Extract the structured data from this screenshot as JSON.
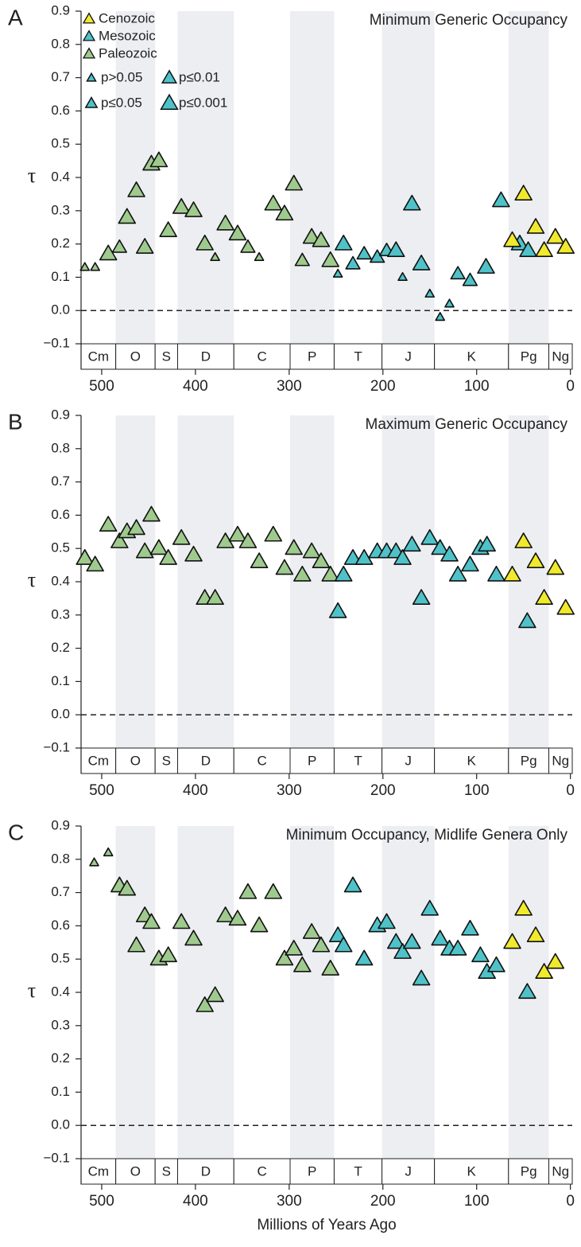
{
  "chart_data": [
    {
      "type": "scatter",
      "panel": "A",
      "title": "Minimum Generic Occupancy",
      "y_label": "τ",
      "xlim": [
        522,
        -2
      ],
      "xticks": [
        500,
        400,
        300,
        200,
        100,
        0
      ],
      "ylim": [
        -0.1,
        0.9
      ],
      "yticks": [
        {
          "value": -0.1,
          "label": "−0.1"
        },
        {
          "value": 0,
          "label": "0.0"
        },
        0.1,
        0.2,
        0.3,
        0.4,
        0.5,
        0.6,
        0.7,
        0.8,
        0.9
      ],
      "zero_line": true,
      "legend": "top-left",
      "size_legend": [
        "p>0.05",
        "p≤0.05",
        "p≤0.01",
        "p≤0.001"
      ],
      "periods": [
        "Cm",
        "O",
        "S",
        "D",
        "C",
        "P",
        "T",
        "J",
        "K",
        "Pg",
        "Ng"
      ],
      "period_boundaries": [
        485,
        443,
        419,
        359,
        299,
        252,
        201,
        145,
        66,
        23
      ],
      "period_shaded": [
        false,
        true,
        false,
        true,
        false,
        true,
        false,
        true,
        false,
        true,
        false
      ],
      "series": [
        {
          "name": "Cenozoic",
          "color": "#f1ea2c",
          "x": [
            62,
            50,
            37,
            28,
            16,
            5
          ],
          "values": [
            0.21,
            0.35,
            0.25,
            0.18,
            0.22,
            0.19
          ],
          "p": [
            "p≤0.001",
            "p≤0.001",
            "p≤0.001",
            "p≤0.001",
            "p≤0.001",
            "p≤0.001"
          ]
        },
        {
          "name": "Mesozoic",
          "color": "#4fc2c9",
          "x": [
            248,
            242,
            232,
            220,
            206,
            196,
            186,
            179,
            169,
            159,
            150,
            139,
            129,
            120,
            107,
            90,
            74,
            54,
            45
          ],
          "values": [
            0.11,
            0.2,
            0.14,
            0.17,
            0.16,
            0.18,
            0.18,
            0.1,
            0.32,
            0.14,
            0.05,
            -0.02,
            0.02,
            0.11,
            0.09,
            0.13,
            0.33,
            0.2,
            0.18
          ],
          "p": [
            "p>0.05",
            "p≤0.001",
            "p≤0.01",
            "p≤0.01",
            "p≤0.01",
            "p≤0.01",
            "p≤0.001",
            "p>0.05",
            "p≤0.001",
            "p≤0.001",
            "p>0.05",
            "p>0.05",
            "p>0.05",
            "p≤0.01",
            "p≤0.01",
            "p≤0.001",
            "p≤0.001",
            "p≤0.001",
            "p≤0.001"
          ]
        },
        {
          "name": "Paleozoic",
          "color": "#9fca8e",
          "x": [
            518,
            507,
            493,
            481,
            473,
            463,
            454,
            447,
            439,
            429,
            415,
            402,
            390,
            379,
            368,
            355,
            344,
            332,
            317,
            305,
            295,
            286,
            276,
            266,
            256
          ],
          "values": [
            0.13,
            0.13,
            0.17,
            0.19,
            0.28,
            0.36,
            0.19,
            0.44,
            0.45,
            0.24,
            0.31,
            0.3,
            0.2,
            0.16,
            0.26,
            0.23,
            0.19,
            0.16,
            0.32,
            0.29,
            0.38,
            0.15,
            0.22,
            0.21,
            0.15
          ],
          "p": [
            "p>0.05",
            "p>0.05",
            "p≤0.001",
            "p≤0.01",
            "p≤0.001",
            "p≤0.001",
            "p≤0.001",
            "p≤0.001",
            "p≤0.001",
            "p≤0.001",
            "p≤0.001",
            "p≤0.001",
            "p≤0.001",
            "p>0.05",
            "p≤0.001",
            "p≤0.001",
            "p≤0.01",
            "p>0.05",
            "p≤0.001",
            "p≤0.001",
            "p≤0.001",
            "p≤0.01",
            "p≤0.001",
            "p≤0.001",
            "p≤0.001"
          ]
        }
      ]
    },
    {
      "type": "scatter",
      "panel": "B",
      "title": "Maximum Generic Occupancy",
      "y_label": "τ",
      "xlim": [
        522,
        -2
      ],
      "xticks": [
        500,
        400,
        300,
        200,
        100,
        0
      ],
      "ylim": [
        -0.1,
        0.9
      ],
      "yticks": [
        {
          "value": -0.1,
          "label": "−0.1"
        },
        {
          "value": 0,
          "label": "0.0"
        },
        0.1,
        0.2,
        0.3,
        0.4,
        0.5,
        0.6,
        0.7,
        0.8,
        0.9
      ],
      "zero_line": true,
      "periods": [
        "Cm",
        "O",
        "S",
        "D",
        "C",
        "P",
        "T",
        "J",
        "K",
        "Pg",
        "Ng"
      ],
      "period_boundaries": [
        485,
        443,
        419,
        359,
        299,
        252,
        201,
        145,
        66,
        23
      ],
      "period_shaded": [
        false,
        true,
        false,
        true,
        false,
        true,
        false,
        true,
        false,
        true,
        false
      ],
      "series": [
        {
          "name": "Cenozoic",
          "color": "#f1ea2c",
          "x": [
            62,
            50,
            37,
            28,
            16,
            5
          ],
          "values": [
            0.42,
            0.52,
            0.46,
            0.35,
            0.44,
            0.32
          ]
        },
        {
          "name": "Mesozoic",
          "color": "#4fc2c9",
          "x": [
            248,
            242,
            232,
            220,
            206,
            196,
            186,
            179,
            169,
            159,
            150,
            139,
            129,
            120,
            107,
            96,
            89,
            79,
            46
          ],
          "values": [
            0.31,
            0.42,
            0.47,
            0.47,
            0.49,
            0.49,
            0.49,
            0.47,
            0.51,
            0.35,
            0.53,
            0.5,
            0.48,
            0.42,
            0.45,
            0.5,
            0.51,
            0.42,
            0.28
          ]
        },
        {
          "name": "Paleozoic",
          "color": "#9fca8e",
          "x": [
            518,
            507,
            493,
            481,
            473,
            463,
            454,
            447,
            439,
            429,
            415,
            402,
            390,
            379,
            368,
            355,
            344,
            332,
            317,
            305,
            295,
            286,
            276,
            266,
            256
          ],
          "values": [
            0.47,
            0.45,
            0.57,
            0.52,
            0.55,
            0.56,
            0.49,
            0.6,
            0.5,
            0.47,
            0.53,
            0.48,
            0.35,
            0.35,
            0.52,
            0.54,
            0.52,
            0.46,
            0.54,
            0.44,
            0.5,
            0.42,
            0.49,
            0.46,
            0.42
          ]
        }
      ]
    },
    {
      "type": "scatter",
      "panel": "C",
      "title": "Minimum Occupancy, Midlife Genera Only",
      "y_label": "τ",
      "x_label": "Millions of Years Ago",
      "xlim": [
        522,
        -2
      ],
      "xticks": [
        500,
        400,
        300,
        200,
        100,
        0
      ],
      "ylim": [
        -0.1,
        0.9
      ],
      "yticks": [
        {
          "value": -0.1,
          "label": "−0.1"
        },
        {
          "value": 0,
          "label": "0.0"
        },
        0.1,
        0.2,
        0.3,
        0.4,
        0.5,
        0.6,
        0.7,
        0.8,
        0.9
      ],
      "zero_line": true,
      "periods": [
        "Cm",
        "O",
        "S",
        "D",
        "C",
        "P",
        "T",
        "J",
        "K",
        "Pg",
        "Ng"
      ],
      "period_boundaries": [
        485,
        443,
        419,
        359,
        299,
        252,
        201,
        145,
        66,
        23
      ],
      "period_shaded": [
        false,
        true,
        false,
        true,
        false,
        true,
        false,
        true,
        false,
        true,
        false
      ],
      "series": [
        {
          "name": "Cenozoic",
          "color": "#f1ea2c",
          "x": [
            62,
            50,
            37,
            28,
            16
          ],
          "values": [
            0.55,
            0.65,
            0.57,
            0.46,
            0.49
          ]
        },
        {
          "name": "Mesozoic",
          "color": "#4fc2c9",
          "x": [
            248,
            242,
            232,
            220,
            206,
            196,
            186,
            179,
            169,
            159,
            150,
            139,
            129,
            120,
            107,
            96,
            89,
            79,
            46
          ],
          "values": [
            0.57,
            0.54,
            0.72,
            0.5,
            0.6,
            0.61,
            0.55,
            0.52,
            0.55,
            0.44,
            0.65,
            0.56,
            0.53,
            0.53,
            0.59,
            0.51,
            0.46,
            0.48,
            0.4
          ]
        },
        {
          "name": "Paleozoic",
          "color": "#9fca8e",
          "x": [
            508,
            493,
            481,
            473,
            463,
            454,
            447,
            439,
            429,
            415,
            402,
            390,
            379,
            368,
            355,
            344,
            332,
            317,
            305,
            295,
            286,
            276,
            266,
            256
          ],
          "values": [
            0.79,
            0.82,
            0.72,
            0.71,
            0.54,
            0.63,
            0.61,
            0.5,
            0.51,
            0.61,
            0.56,
            0.36,
            0.39,
            0.63,
            0.62,
            0.7,
            0.6,
            0.7,
            0.5,
            0.53,
            0.48,
            0.58,
            0.54,
            0.47
          ],
          "p": [
            "p>0.05",
            "p>0.05",
            "p≤0.001",
            "p≤0.001",
            "p≤0.001",
            "p≤0.001",
            "p≤0.001",
            "p≤0.001",
            "p≤0.001",
            "p≤0.001",
            "p≤0.001",
            "p≤0.001",
            "p≤0.001",
            "p≤0.001",
            "p≤0.001",
            "p≤0.001",
            "p≤0.001",
            "p≤0.001",
            "p≤0.001",
            "p≤0.001",
            "p≤0.001",
            "p≤0.001",
            "p≤0.001",
            "p≤0.001"
          ]
        }
      ]
    }
  ]
}
